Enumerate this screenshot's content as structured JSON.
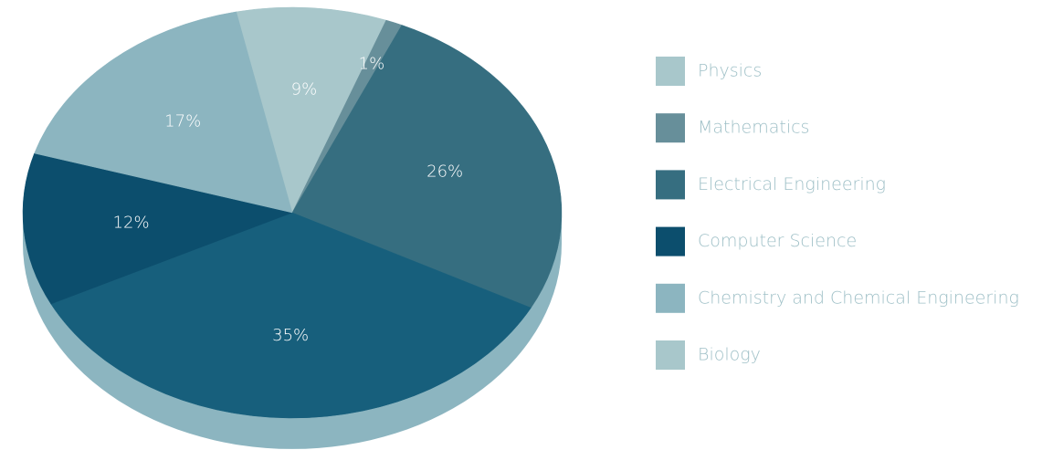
{
  "chart_data": {
    "type": "pie",
    "categories": [
      "Physics",
      "Mathematics",
      "Electrical Engineering",
      "Computer Science",
      "Chemistry and Chemical Engineering",
      "Biology"
    ],
    "values": [
      9,
      1,
      26,
      35,
      12,
      17
    ],
    "value_labels": [
      "9%",
      "1%",
      "26%",
      "35%",
      "12%",
      "17%"
    ],
    "colors": [
      "#a8c7cb",
      "#678f9a",
      "#366e80",
      "#175f7c",
      "#0c4e6d",
      "#8cb5c0"
    ],
    "legend_colors": [
      "#a8c7cb",
      "#678f9a",
      "#366e80",
      "#0c4e6d",
      "#8cb5c0",
      "#a8c7cb"
    ],
    "legend": "right"
  }
}
